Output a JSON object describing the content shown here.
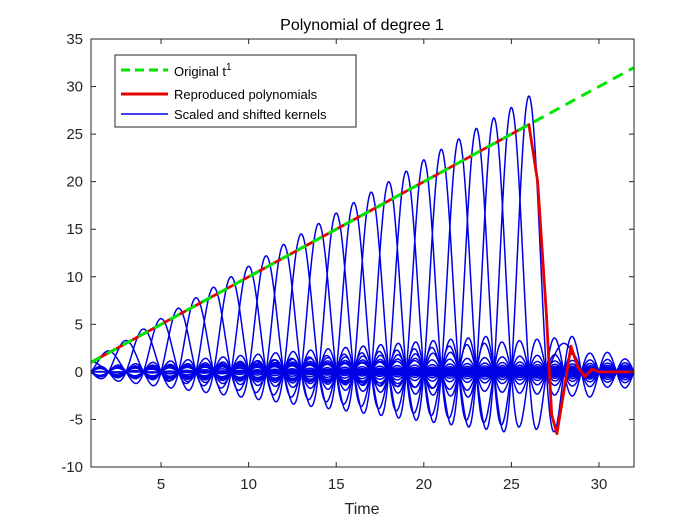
{
  "chart_data": {
    "type": "line",
    "title": "Polynomial of degree 1",
    "xlabel": "Time",
    "ylabel": "",
    "xlim": [
      1,
      32
    ],
    "ylim": [
      -10,
      35
    ],
    "xticks": [
      5,
      10,
      15,
      20,
      25,
      30
    ],
    "yticks": [
      -10,
      -5,
      0,
      5,
      10,
      15,
      20,
      25,
      30,
      35
    ],
    "legend_position": "top-left",
    "series": [
      {
        "name": "Original t",
        "name_superscript": "1",
        "color": "#00e600",
        "style": "dashed",
        "x": [
          1,
          32
        ],
        "y": [
          1,
          32
        ]
      },
      {
        "name": "Reproduced polynomials",
        "color": "#e60000",
        "style": "solid",
        "x": [
          1,
          26,
          26.5,
          27,
          27.3,
          27.6,
          28.0,
          28.4,
          28.8,
          29.2,
          29.6,
          30,
          32
        ],
        "y": [
          1,
          26,
          20,
          6,
          -4.5,
          -6.5,
          -2,
          2.7,
          0.5,
          -0.5,
          0.3,
          0,
          0
        ]
      },
      {
        "name": "Scaled and shifted kernels",
        "color": "#0000e6",
        "style": "solid",
        "kernel_centers": [
          1,
          2,
          3,
          4,
          5,
          6,
          7,
          8,
          9,
          10,
          11,
          12,
          13,
          14,
          15,
          16,
          17,
          18,
          19,
          20,
          21,
          22,
          23,
          24,
          25,
          26,
          27,
          28
        ],
        "kernel_peaks": [
          1.1,
          2.2,
          3.3,
          4.5,
          5.6,
          6.7,
          7.8,
          8.9,
          10.0,
          11.1,
          12.2,
          13.4,
          14.5,
          15.6,
          16.7,
          17.8,
          18.9,
          20.0,
          21.1,
          22.3,
          23.4,
          24.5,
          25.6,
          26.7,
          27.8,
          29.0,
          0.5,
          3.0
        ]
      }
    ]
  }
}
